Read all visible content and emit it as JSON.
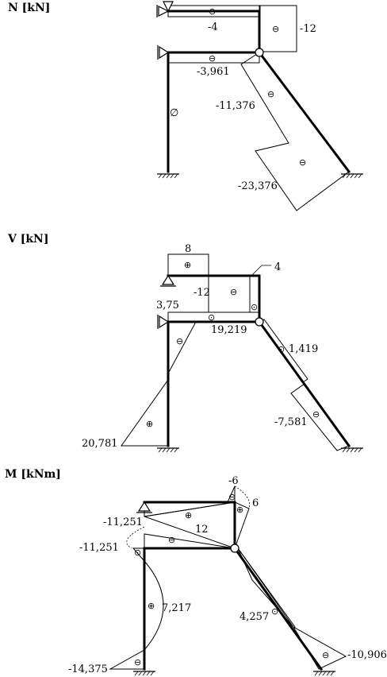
{
  "panels": {
    "normal": {
      "title": "N [kN]",
      "values": {
        "top_beam": "-4",
        "right_post": "-12",
        "mid_beam": "-3,961",
        "diag_upper": "-11,376",
        "diag_lower": "-23,376",
        "left_column": "∅"
      }
    },
    "shear": {
      "title": "V [kN]",
      "values": {
        "top_beam": "8",
        "post_left": "-12",
        "post_right": "4",
        "mid_beam_left": "3,75",
        "mid_beam_right": "19,219",
        "diag_upper": "1,419",
        "diag_lower": "-7,581",
        "column_base": "20,781"
      }
    },
    "moment": {
      "title": "M [kNm]",
      "values": {
        "top_peak": "-6",
        "top_right": "6",
        "top_mid": "12",
        "left_upper": "-11,251",
        "left_joint": "-11,251",
        "column_mid": "7,217",
        "column_base": "-14,375",
        "diag_mid": "4,257",
        "diag_end": "-10,906"
      }
    }
  },
  "sign_glyphs": {
    "minus": "⊖",
    "plus": "⊕",
    "dot": "⊙"
  }
}
